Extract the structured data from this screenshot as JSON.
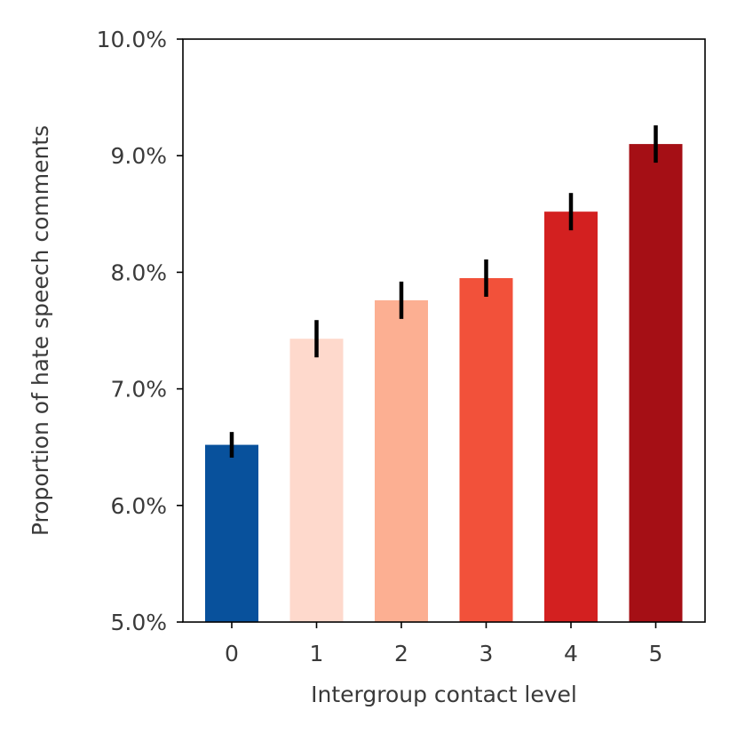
{
  "chart_data": {
    "type": "bar",
    "title": "",
    "xlabel": "Intergroup contact level",
    "ylabel": "Proportion of hate speech comments",
    "categories": [
      "0",
      "1",
      "2",
      "3",
      "4",
      "5"
    ],
    "values": [
      6.52,
      7.43,
      7.76,
      7.95,
      8.52,
      9.1
    ],
    "error": [
      0.11,
      0.16,
      0.16,
      0.16,
      0.16,
      0.16
    ],
    "bar_colors": [
      "#08519c",
      "#fed9cc",
      "#fcaf92",
      "#f2513a",
      "#d32020",
      "#a50f15"
    ],
    "error_color": "#000000",
    "ylim": [
      5.0,
      10.0
    ],
    "yticks": [
      5.0,
      6.0,
      7.0,
      8.0,
      9.0,
      10.0
    ],
    "ytick_labels": [
      "5.0%",
      "6.0%",
      "7.0%",
      "8.0%",
      "9.0%",
      "10.0%"
    ],
    "grid": false,
    "legend": null
  }
}
